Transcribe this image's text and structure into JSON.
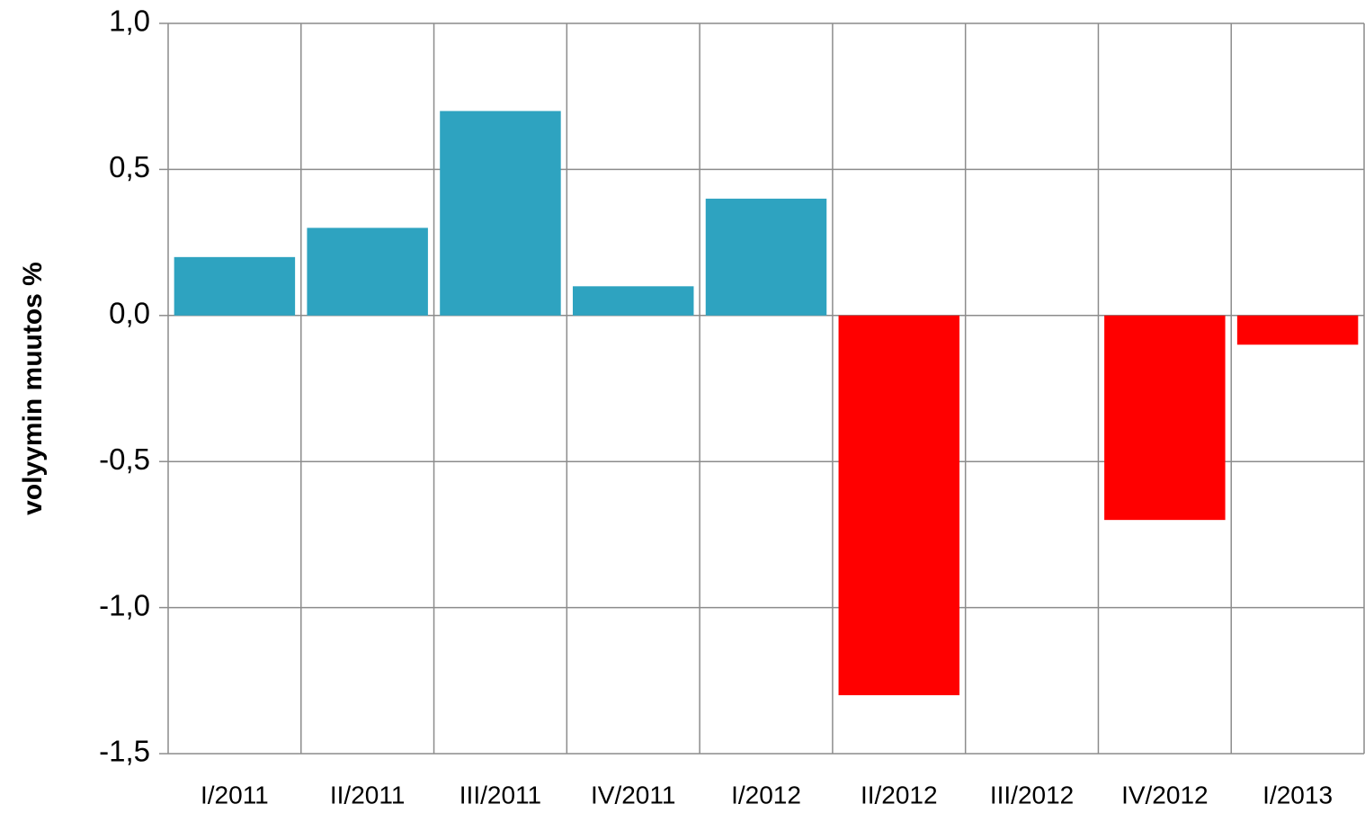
{
  "chart_data": {
    "type": "bar",
    "y_label": "volyymin muutos %",
    "categories": [
      "I/2011",
      "II/2011",
      "III/2011",
      "IV/2011",
      "I/2012",
      "II/2012",
      "III/2012",
      "IV/2012",
      "I/2013"
    ],
    "values": [
      0.2,
      0.3,
      0.7,
      0.1,
      0.4,
      -1.3,
      0,
      -0.7,
      -0.1
    ],
    "colors": [
      "#2ea3c0",
      "#2ea3c0",
      "#2ea3c0",
      "#2ea3c0",
      "#2ea3c0",
      "#ff0000",
      "#ff0000",
      "#ff0000",
      "#ff0000"
    ],
    "ylim": [
      -1.5,
      1.0
    ],
    "yticks": [
      {
        "value": -1.5,
        "label": "-1,5"
      },
      {
        "value": -1.0,
        "label": "-1,0"
      },
      {
        "value": -0.5,
        "label": "-0,5"
      },
      {
        "value": 0,
        "label": "0,0"
      },
      {
        "value": 0.5,
        "label": "0,5"
      },
      {
        "value": 1.0,
        "label": "1,0"
      }
    ],
    "grid": true
  }
}
